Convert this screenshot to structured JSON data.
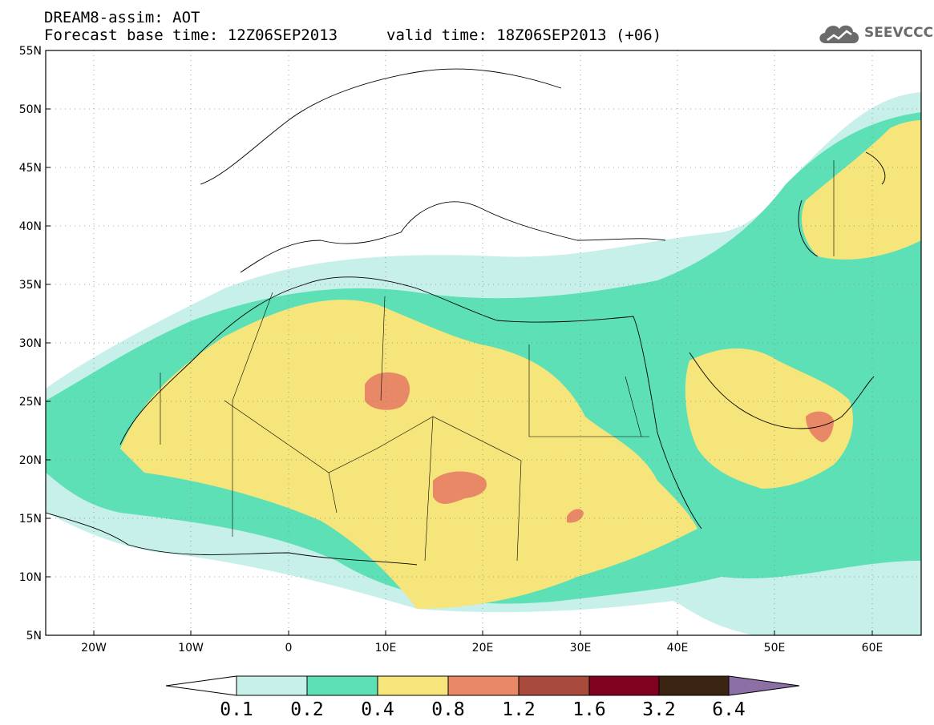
{
  "title": {
    "line1": "DREAM8-assim: AOT",
    "line2": "Forecast base time: 12Z06SEP2013",
    "valid": "valid time: 18Z06SEP2013 (+06)"
  },
  "logo": {
    "text": "SEEVCCC",
    "icon": "cloud-icon"
  },
  "map": {
    "lat_labels": [
      "55N",
      "50N",
      "45N",
      "40N",
      "35N",
      "30N",
      "25N",
      "20N",
      "15N",
      "10N",
      "5N"
    ],
    "lon_labels": [
      "20W",
      "10W",
      "0",
      "10E",
      "20E",
      "30E",
      "40E",
      "50E",
      "60E"
    ],
    "lat_range": [
      5,
      55
    ],
    "lon_range": [
      -25,
      65
    ],
    "grid": "dotted"
  },
  "colorbar": {
    "labels": [
      "0.1",
      "0.2",
      "0.4",
      "0.8",
      "1.2",
      "1.6",
      "3.2",
      "6.4"
    ],
    "colors": [
      "#ffffff",
      "#c7f0ea",
      "#5de0b6",
      "#f5e57a",
      "#e98866",
      "#a84a3c",
      "#800020",
      "#3b2412",
      "#8c6fa5"
    ]
  }
}
